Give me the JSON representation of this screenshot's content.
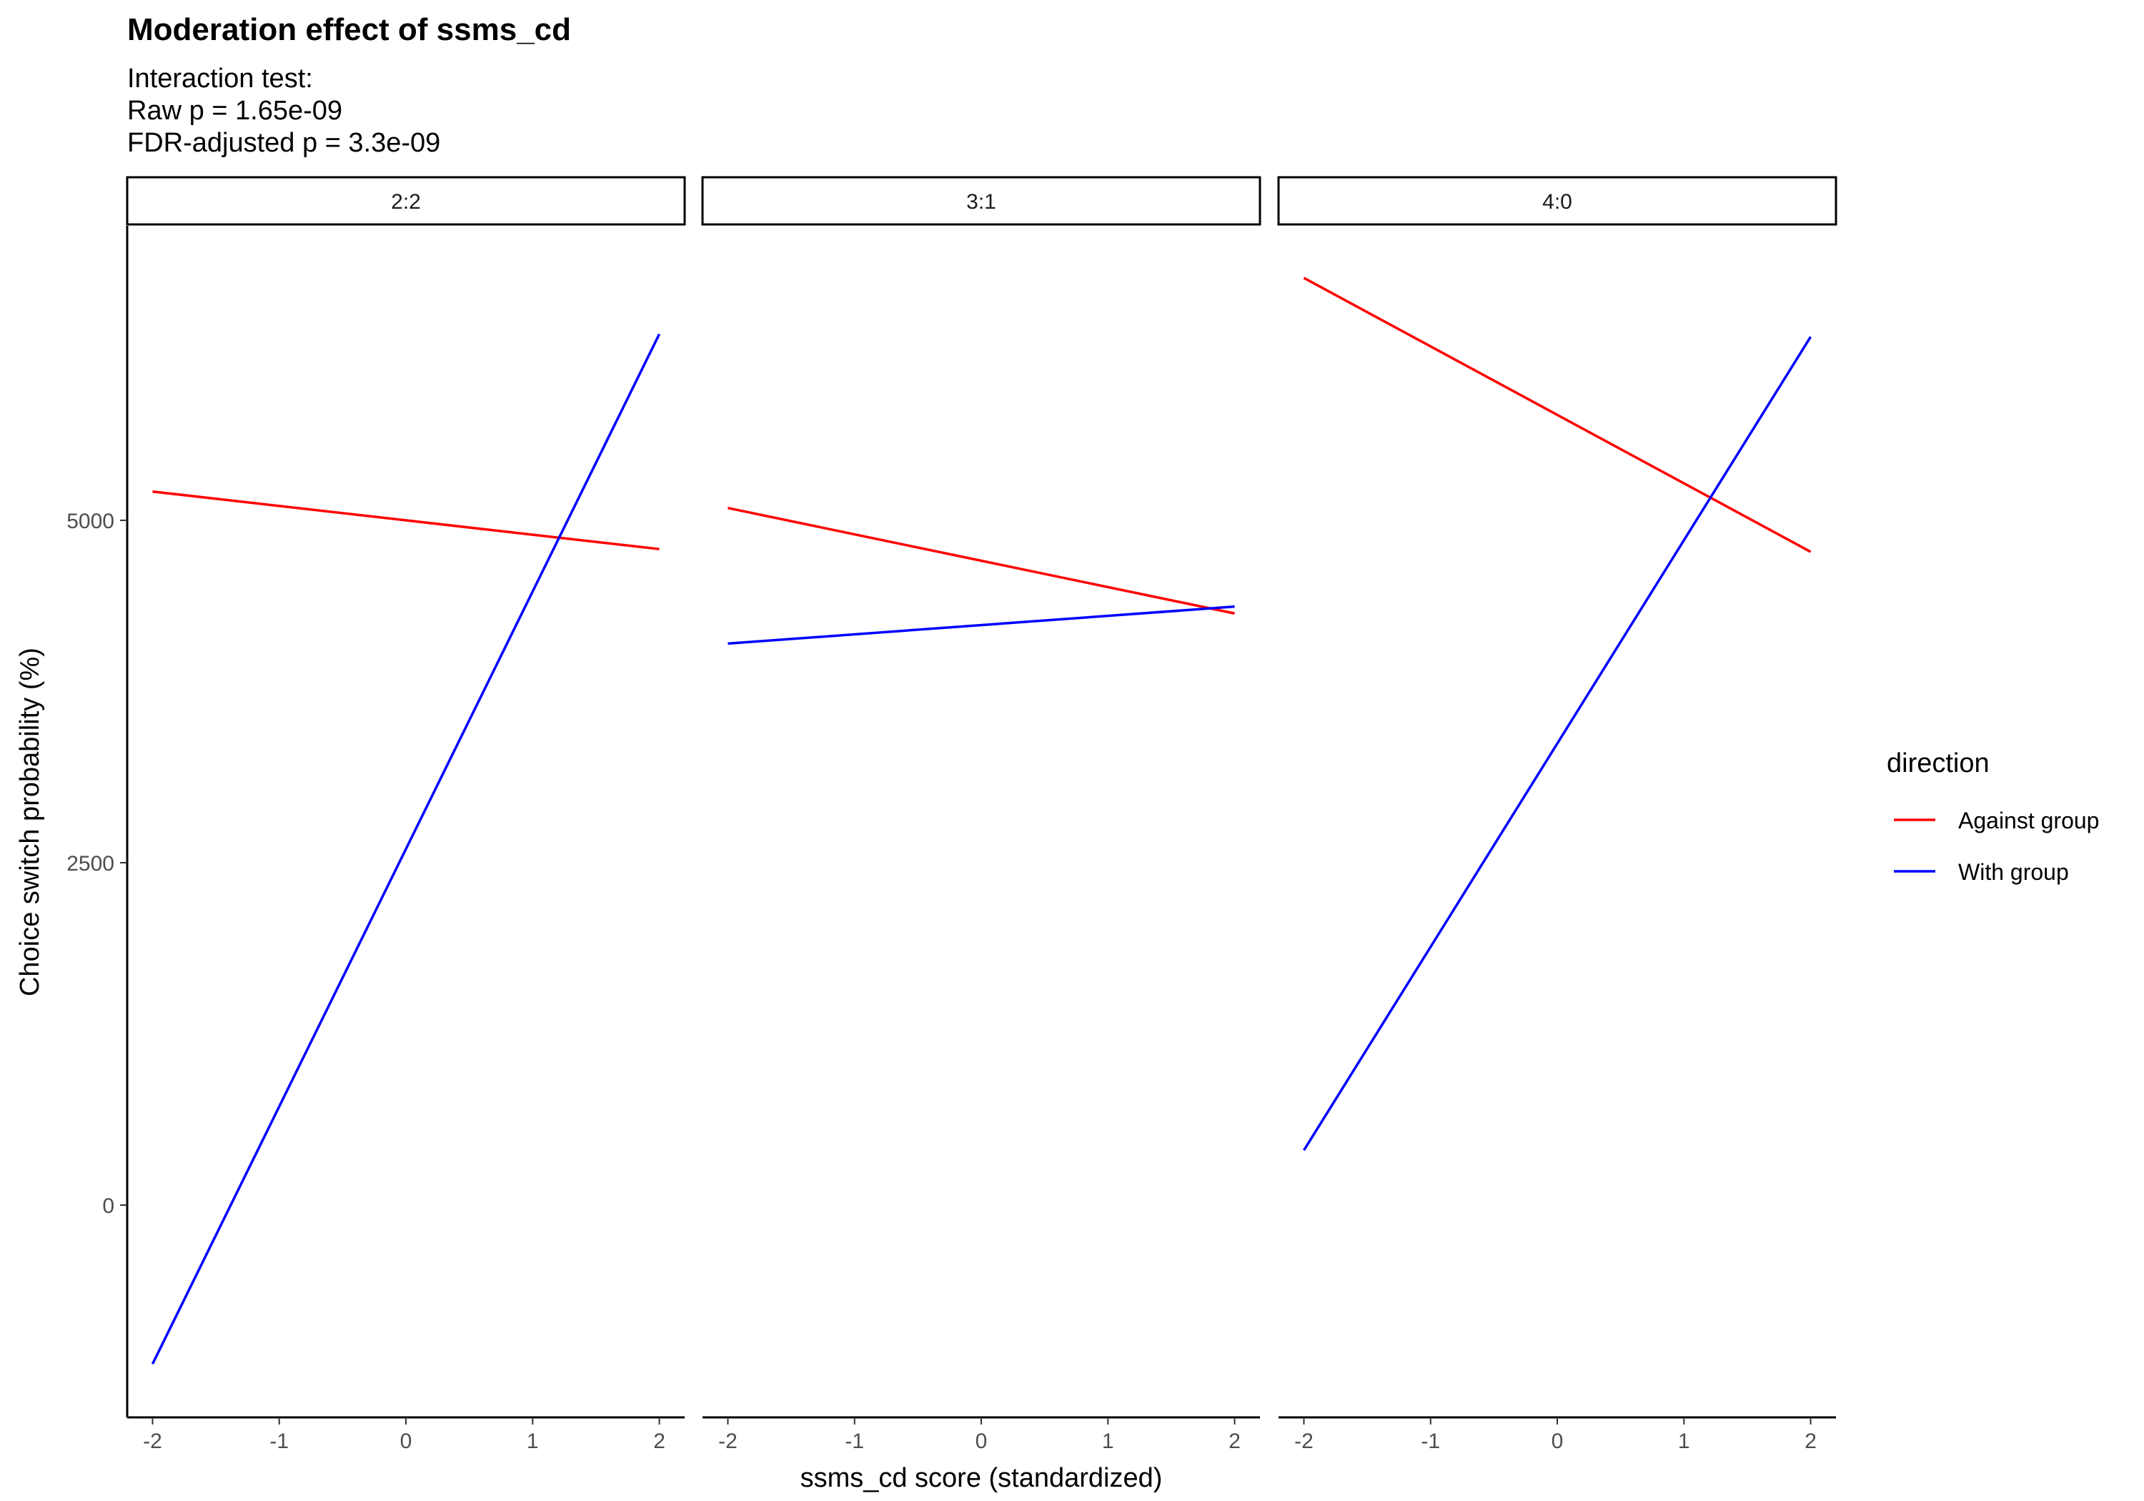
{
  "chart_data": {
    "type": "line",
    "title": "Moderation effect of ssms_cd",
    "subtitle": [
      "Interaction test:",
      "Raw p = 1.65e-09",
      "FDR-adjusted p = 3.3e-09"
    ],
    "xlabel": "ssms_cd score (standardized)",
    "ylabel": "Choice switch probability (%)",
    "xlim": [
      -2.2,
      2.2
    ],
    "ylim": [
      -1550,
      7150
    ],
    "x_ticks": [
      -2,
      -1,
      0,
      1,
      2
    ],
    "x_tick_labels": [
      "-2",
      "-1",
      "0",
      "1",
      "2"
    ],
    "y_ticks": [
      0,
      2500,
      5000
    ],
    "y_tick_labels": [
      "0",
      "2500",
      "5000"
    ],
    "grid": false,
    "legend": {
      "title": "direction",
      "position": "right",
      "entries": [
        {
          "label": "Against group",
          "color": "#FF0000"
        },
        {
          "label": "With group",
          "color": "#0000FF"
        }
      ]
    },
    "facets": [
      {
        "label": "2:2",
        "series": [
          {
            "name": "Against group",
            "color": "#FF0000",
            "x": [
              -2,
              2
            ],
            "y": [
              5210,
              4790
            ]
          },
          {
            "name": "With group",
            "color": "#0000FF",
            "x": [
              -2,
              2
            ],
            "y": [
              -1160,
              6360
            ]
          }
        ]
      },
      {
        "label": "3:1",
        "series": [
          {
            "name": "Against group",
            "color": "#FF0000",
            "x": [
              -2,
              2
            ],
            "y": [
              5090,
              4320
            ]
          },
          {
            "name": "With group",
            "color": "#0000FF",
            "x": [
              -2,
              2
            ],
            "y": [
              4100,
              4370
            ]
          }
        ]
      },
      {
        "label": "4:0",
        "series": [
          {
            "name": "Against group",
            "color": "#FF0000",
            "x": [
              -2,
              2
            ],
            "y": [
              6770,
              4770
            ]
          },
          {
            "name": "With group",
            "color": "#0000FF",
            "x": [
              -2,
              2
            ],
            "y": [
              400,
              6340
            ]
          }
        ]
      }
    ]
  }
}
